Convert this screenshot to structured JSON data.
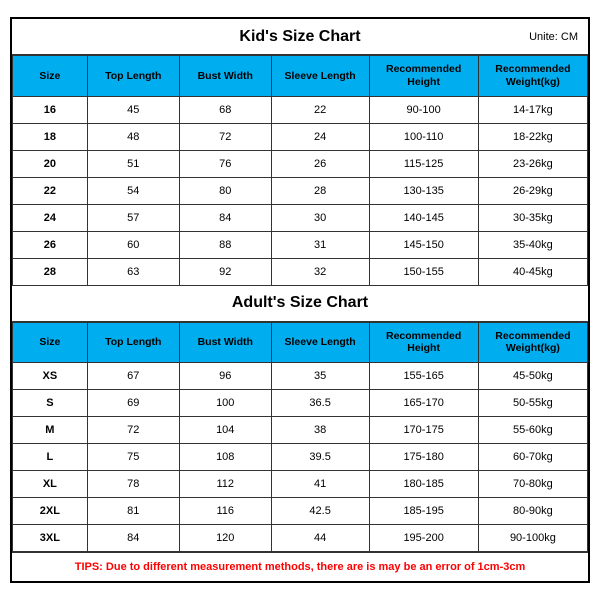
{
  "unit_label": "Unite: CM",
  "kids": {
    "title": "Kid's Size Chart",
    "columns": [
      "Size",
      "Top Length",
      "Bust Width",
      "Sleeve Length",
      "Recommended Height",
      "Recommended Weight(kg)"
    ],
    "rows": [
      [
        "16",
        "45",
        "68",
        "22",
        "90-100",
        "14-17kg"
      ],
      [
        "18",
        "48",
        "72",
        "24",
        "100-110",
        "18-22kg"
      ],
      [
        "20",
        "51",
        "76",
        "26",
        "115-125",
        "23-26kg"
      ],
      [
        "22",
        "54",
        "80",
        "28",
        "130-135",
        "26-29kg"
      ],
      [
        "24",
        "57",
        "84",
        "30",
        "140-145",
        "30-35kg"
      ],
      [
        "26",
        "60",
        "88",
        "31",
        "145-150",
        "35-40kg"
      ],
      [
        "28",
        "63",
        "92",
        "32",
        "150-155",
        "40-45kg"
      ]
    ]
  },
  "adults": {
    "title": "Adult's Size Chart",
    "columns": [
      "Size",
      "Top Length",
      "Bust Width",
      "Sleeve Length",
      "Recommended Height",
      "Recommended Weight(kg)"
    ],
    "rows": [
      [
        "XS",
        "67",
        "96",
        "35",
        "155-165",
        "45-50kg"
      ],
      [
        "S",
        "69",
        "100",
        "36.5",
        "165-170",
        "50-55kg"
      ],
      [
        "M",
        "72",
        "104",
        "38",
        "170-175",
        "55-60kg"
      ],
      [
        "L",
        "75",
        "108",
        "39.5",
        "175-180",
        "60-70kg"
      ],
      [
        "XL",
        "78",
        "112",
        "41",
        "180-185",
        "70-80kg"
      ],
      [
        "2XL",
        "81",
        "116",
        "42.5",
        "185-195",
        "80-90kg"
      ],
      [
        "3XL",
        "84",
        "120",
        "44",
        "195-200",
        "90-100kg"
      ]
    ]
  },
  "tips": "TIPS: Due to different measurement methods, there are is may be an error of 1cm-3cm",
  "colors": {
    "header_bg": "#00aeef",
    "border": "#333333",
    "tips_text": "#ff0000",
    "background": "#ffffff"
  }
}
